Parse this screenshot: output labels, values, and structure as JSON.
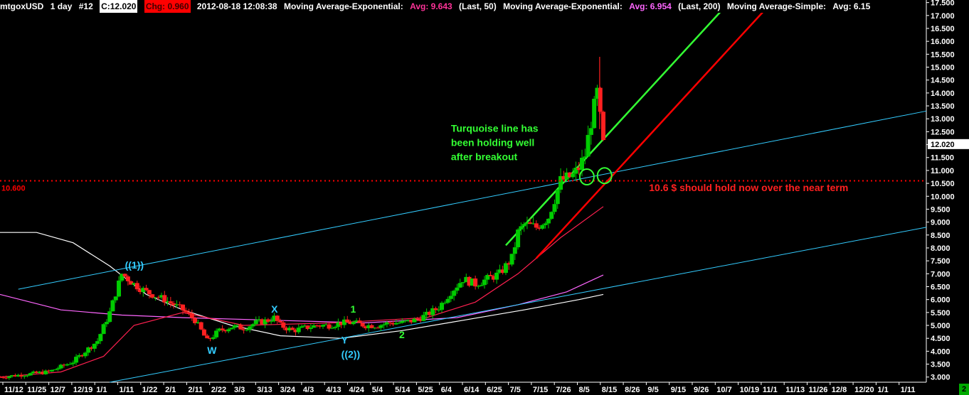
{
  "header": {
    "symbol": "mtgoxUSD",
    "interval": "1 day",
    "bar_index": "#12",
    "close": "C:12.020",
    "change": "Chg: 0.960",
    "datetime": "2012-08-18 12:08:38",
    "ema50_label": "Moving Average-Exponential:",
    "ema50_avg": "Avg: 9.643",
    "ema50_params": "(Last, 50)",
    "ema200_label": "Moving Average-Exponential:",
    "ema200_avg": "Avg: 6.954",
    "ema200_params": "(Last, 200)",
    "sma_label": "Moving Average-Simple:",
    "sma_avg": "Avg: 6.15"
  },
  "corner_badge": "2",
  "colors": {
    "background": "#000000",
    "candle_up": "#00cc00",
    "candle_down": "#ff2020",
    "turquoise": "#33ccff",
    "support": "#ff0000",
    "trend_green": "#33ff33",
    "ema50": "#ff2050",
    "ema200": "#ff66ff",
    "sma": "#ffffff",
    "axis_text": "#ffffff"
  },
  "chart_data": {
    "type": "candlestick",
    "x_ticks": [
      "11/12",
      "11/25",
      "12/7",
      "12/19",
      "1/1",
      "1/11",
      "1/22",
      "2/1",
      "2/11",
      "2/22",
      "3/3",
      "3/13",
      "3/24",
      "4/3",
      "4/13",
      "4/24",
      "5/4",
      "5/14",
      "5/25",
      "6/4",
      "6/14",
      "6/25",
      "7/5",
      "7/15",
      "7/26",
      "8/5",
      "8/15",
      "8/26",
      "9/5",
      "9/15",
      "9/26",
      "10/7",
      "10/19",
      "11/1",
      "11/13",
      "11/26",
      "12/8",
      "12/20",
      "1/1",
      "1/11"
    ],
    "y_ticks": [
      "3.000",
      "3.500",
      "4.000",
      "4.500",
      "5.000",
      "5.500",
      "6.000",
      "6.500",
      "7.000",
      "7.500",
      "8.000",
      "8.500",
      "9.000",
      "9.500",
      "10.000",
      "10.500",
      "11.000",
      "11.500",
      "12.000",
      "12.500",
      "13.000",
      "13.500",
      "14.000",
      "14.500",
      "15.000",
      "15.500",
      "16.000",
      "16.500",
      "17.000",
      "17.500"
    ],
    "ylim": [
      2.8,
      17.6
    ],
    "last_price_label": "12.020",
    "last_price": 12.02,
    "support_level_label": "10.600",
    "support_level": 10.6,
    "price_path": [
      [
        0,
        3.0
      ],
      [
        4,
        3.1
      ],
      [
        8,
        3.2
      ],
      [
        12,
        3.6
      ],
      [
        16,
        4.4
      ],
      [
        18,
        5.5
      ],
      [
        20,
        7.0
      ],
      [
        22,
        6.6
      ],
      [
        24,
        6.3
      ],
      [
        27,
        6.0
      ],
      [
        30,
        5.6
      ],
      [
        32,
        5.2
      ],
      [
        34,
        4.4
      ],
      [
        36,
        4.8
      ],
      [
        38,
        4.95
      ],
      [
        40,
        4.9
      ],
      [
        42,
        5.1
      ],
      [
        44,
        5.2
      ],
      [
        45,
        5.3
      ],
      [
        46,
        5.0
      ],
      [
        48,
        4.8
      ],
      [
        50,
        4.9
      ],
      [
        52,
        5.0
      ],
      [
        54,
        5.0
      ],
      [
        56,
        5.1
      ],
      [
        58,
        5.1
      ],
      [
        60,
        5.0
      ],
      [
        62,
        5.0
      ],
      [
        64,
        5.1
      ],
      [
        66,
        5.1
      ],
      [
        68,
        5.2
      ],
      [
        70,
        5.4
      ],
      [
        72,
        5.7
      ],
      [
        74,
        6.3
      ],
      [
        76,
        6.8
      ],
      [
        78,
        6.6
      ],
      [
        80,
        6.8
      ],
      [
        82,
        7.0
      ],
      [
        84,
        7.6
      ],
      [
        85,
        8.6
      ],
      [
        86,
        8.9
      ],
      [
        88,
        8.8
      ],
      [
        90,
        9.2
      ],
      [
        92,
        10.6
      ],
      [
        94,
        10.8
      ],
      [
        95,
        11.1
      ],
      [
        96,
        11.6
      ],
      [
        97,
        12.9
      ],
      [
        98,
        14.0
      ],
      [
        99,
        12.0
      ]
    ],
    "annotations": [
      {
        "text": "((1))",
        "color": "#33ccff",
        "x": 20.5,
        "y": 7.2
      },
      {
        "text": "W",
        "color": "#33ccff",
        "x": 34.0,
        "y": 3.9
      },
      {
        "text": "X",
        "color": "#33ccff",
        "x": 44.5,
        "y": 5.5
      },
      {
        "text": "Y",
        "color": "#33ccff",
        "x": 56.0,
        "y": 4.3
      },
      {
        "text": "((2))",
        "color": "#33ccff",
        "x": 56.0,
        "y": 3.75
      },
      {
        "text": "1",
        "color": "#33ff33",
        "x": 57.5,
        "y": 5.5
      },
      {
        "text": "2",
        "color": "#33ff33",
        "x": 65.5,
        "y": 4.5
      },
      {
        "text": "Turquoise line has",
        "color": "#33ff33",
        "x": 74.0,
        "y": 12.5
      },
      {
        "text": "been holding well",
        "color": "#33ff33",
        "x": 74.0,
        "y": 11.95
      },
      {
        "text": "after breakout",
        "color": "#33ff33",
        "x": 74.0,
        "y": 11.4
      },
      {
        "text": "10.6 $ should hold now over the near term",
        "color": "#ff2020",
        "x": 106.5,
        "y": 10.2
      }
    ],
    "trendlines": [
      {
        "name": "",
        "color": "#33ccff",
        "points": [
          [
            3,
            6.4
          ],
          [
            152,
            13.3
          ]
        ]
      },
      {
        "name": "",
        "color": "#33ccff",
        "points": [
          [
            18,
            2.8
          ],
          [
            152,
            8.8
          ]
        ]
      },
      {
        "name": "",
        "color": "#33ff33",
        "points": [
          [
            83,
            8.1
          ],
          [
            120,
            17.6
          ]
        ]
      },
      {
        "name": "",
        "color": "#ff0000",
        "points": [
          [
            88,
            7.6
          ],
          [
            127,
            17.6
          ]
        ]
      }
    ],
    "circles": [
      {
        "x": 96.3,
        "y": 10.75
      },
      {
        "x": 99.2,
        "y": 10.8
      }
    ],
    "ema50": [
      [
        0,
        3.0
      ],
      [
        10,
        3.2
      ],
      [
        17,
        3.8
      ],
      [
        22,
        5.0
      ],
      [
        30,
        5.5
      ],
      [
        40,
        5.0
      ],
      [
        55,
        5.1
      ],
      [
        70,
        5.3
      ],
      [
        78,
        5.9
      ],
      [
        85,
        7.0
      ],
      [
        92,
        8.4
      ],
      [
        99,
        9.6
      ]
    ],
    "ema200": [
      [
        0,
        6.2
      ],
      [
        10,
        5.6
      ],
      [
        20,
        5.4
      ],
      [
        30,
        5.3
      ],
      [
        45,
        5.2
      ],
      [
        60,
        5.1
      ],
      [
        75,
        5.3
      ],
      [
        85,
        5.8
      ],
      [
        93,
        6.3
      ],
      [
        99,
        6.95
      ]
    ],
    "sma": [
      [
        0,
        8.6
      ],
      [
        6,
        8.6
      ],
      [
        12,
        8.2
      ],
      [
        18,
        7.3
      ],
      [
        24,
        6.2
      ],
      [
        30,
        5.6
      ],
      [
        38,
        5.0
      ],
      [
        46,
        4.6
      ],
      [
        56,
        4.5
      ],
      [
        66,
        4.8
      ],
      [
        76,
        5.2
      ],
      [
        86,
        5.6
      ],
      [
        95,
        6.0
      ],
      [
        99,
        6.2
      ]
    ]
  }
}
